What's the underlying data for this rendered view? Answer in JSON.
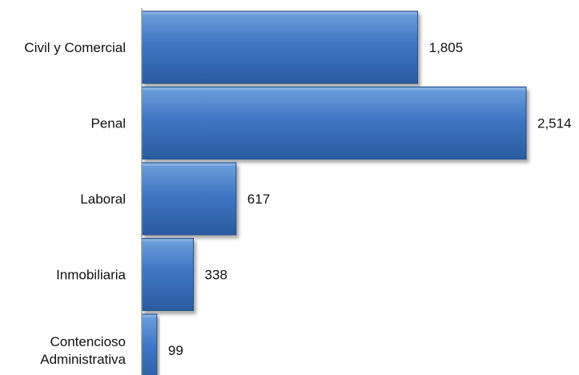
{
  "chart_data": {
    "type": "bar",
    "orientation": "horizontal",
    "categories": [
      "Civil y Comercial",
      "Penal",
      "Laboral",
      "Inmobiliaria",
      "Contencioso Administrativa"
    ],
    "category_lines": [
      [
        "Civil y Comercial"
      ],
      [
        "Penal"
      ],
      [
        "Laboral"
      ],
      [
        "Inmobiliaria"
      ],
      [
        "Contencioso",
        "Administrativa"
      ]
    ],
    "values": [
      1805,
      2514,
      617,
      338,
      99
    ],
    "value_labels": [
      "1,805",
      "2,514",
      "617",
      "338",
      "99"
    ],
    "title": "",
    "xlabel": "",
    "ylabel": "",
    "xlim": [
      0,
      2514
    ],
    "grid": false,
    "legend": "none",
    "colors": {
      "bar_top": "#6fa0dc",
      "bar_mid": "#3f76c4",
      "bar_bottom": "#2a5b9f",
      "bar_edge": "#244f8c",
      "axis": "#8a8a8a",
      "text": "#111111"
    }
  }
}
